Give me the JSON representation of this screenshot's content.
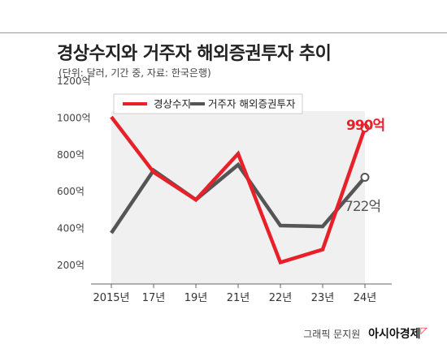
{
  "title": "경상수지와 거주자 해외증권투자 추이",
  "subtitle": "(단위: 달러, 기간 중, 자료: 한국은행)",
  "source": {
    "credit": "그래픽 문지원",
    "brand": "아시아경제"
  },
  "chart_data": {
    "type": "line",
    "categories": [
      "2015년",
      "17년",
      "19년",
      "21년",
      "22년",
      "23년",
      "24년"
    ],
    "ylim": [
      200,
      1200
    ],
    "yticks": [
      200,
      400,
      600,
      800,
      1000,
      1200
    ],
    "ytick_labels": [
      "200억",
      "400억",
      "600억",
      "800억",
      "1000억",
      "1200억"
    ],
    "series": [
      {
        "name": "경상수지",
        "color": "#e8202a",
        "values": [
          1050,
          750,
          600,
          850,
          260,
          330,
          990
        ],
        "end_label": "990억"
      },
      {
        "name": "거주자 해외증권투자",
        "color": "#555555",
        "values": [
          420,
          760,
          600,
          790,
          460,
          455,
          722
        ],
        "end_label": "722억"
      }
    ],
    "legend": "top-right",
    "grid": false
  }
}
